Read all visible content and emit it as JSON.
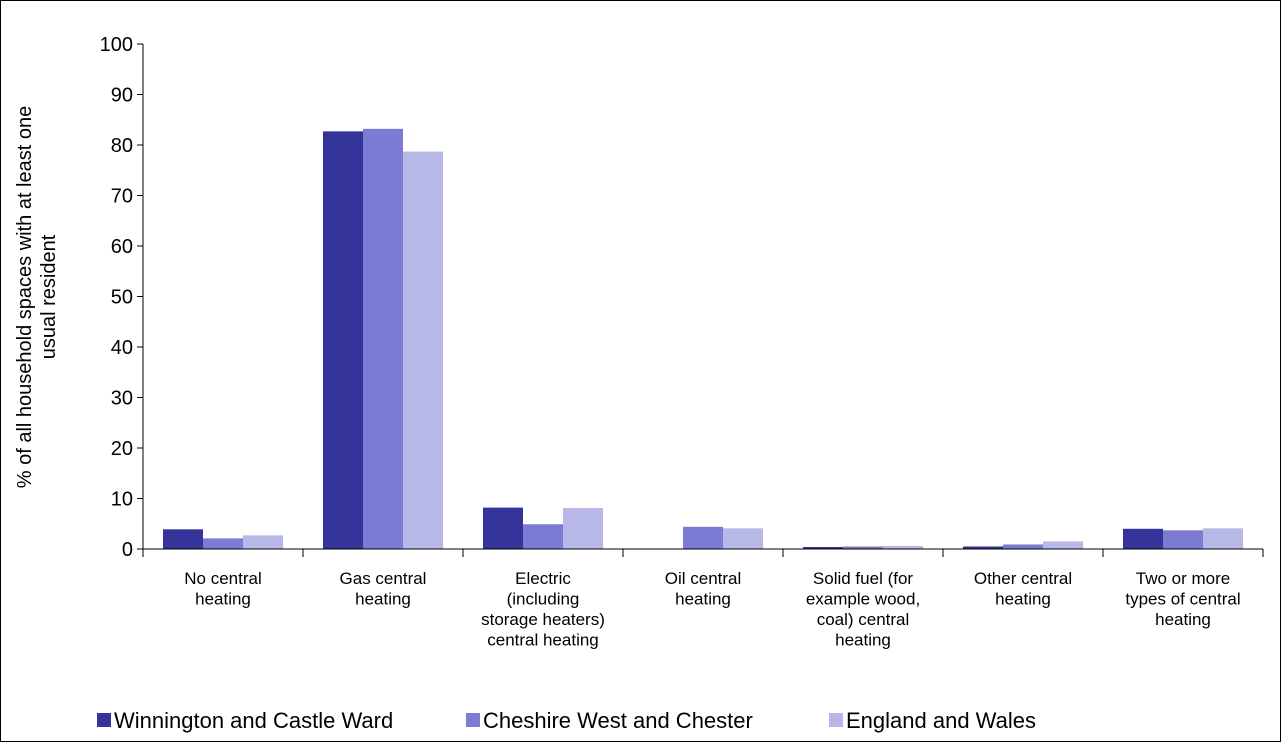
{
  "chart_data": {
    "type": "bar",
    "title": "",
    "xlabel": "",
    "ylabel": "% of all household spaces with at least one usual resident",
    "ylabel_lines": [
      "% of all household spaces with at least one",
      "usual resident"
    ],
    "ylim": [
      0,
      100
    ],
    "yticks": [
      0,
      10,
      20,
      30,
      40,
      50,
      60,
      70,
      80,
      90,
      100
    ],
    "grid": false,
    "legend_position": "bottom",
    "categories": [
      [
        "No central",
        "heating"
      ],
      [
        "Gas central",
        "heating"
      ],
      [
        "Electric",
        "(including",
        "storage heaters)",
        "central heating"
      ],
      [
        "Oil central",
        "heating"
      ],
      [
        "Solid fuel (for",
        "example wood,",
        "coal) central",
        "heating"
      ],
      [
        "Other central",
        "heating"
      ],
      [
        "Two or more",
        "types of central",
        "heating"
      ]
    ],
    "series": [
      {
        "name": "Winnington and Castle Ward",
        "color": "#333399",
        "values": [
          3.9,
          82.7,
          8.2,
          0.0,
          0.4,
          0.5,
          4.0
        ]
      },
      {
        "name": "Cheshire West and Chester",
        "color": "#7b7bd4",
        "values": [
          2.1,
          83.2,
          4.9,
          4.4,
          0.5,
          0.9,
          3.7
        ]
      },
      {
        "name": "England and Wales",
        "color": "#b8b8e8",
        "values": [
          2.7,
          78.7,
          8.1,
          4.1,
          0.6,
          1.5,
          4.1
        ]
      }
    ]
  }
}
